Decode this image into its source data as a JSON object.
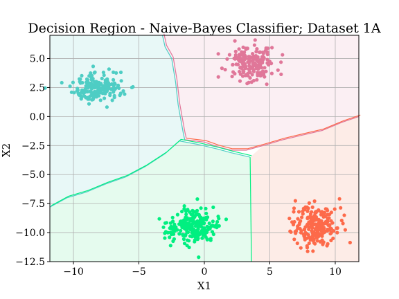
{
  "chart_data": {
    "type": "scatter",
    "title": "Decision Region - Naive-Bayes Classifier; Dataset 1A",
    "xlabel": "X1",
    "ylabel": "X2",
    "xlim": [
      -11.8,
      11.8
    ],
    "ylim": [
      -12.5,
      7.0
    ],
    "xticks": [
      -10,
      -5,
      0,
      5,
      10
    ],
    "yticks": [
      -12.5,
      -10.0,
      -7.5,
      -5.0,
      -2.5,
      0.0,
      2.5,
      5.0
    ],
    "xtick_labels": [
      "−10",
      "−5",
      "0",
      "5",
      "10"
    ],
    "ytick_labels": [
      "−12.5",
      "−10.0",
      "−7.5",
      "−5.0",
      "−2.5",
      "0.0",
      "2.5",
      "5.0"
    ],
    "grid": true,
    "clusters": [
      {
        "center": [
          -8.2,
          2.5
        ],
        "spread": [
          1.0,
          0.6
        ],
        "count": 180,
        "color": "#4ecdc4",
        "region_color": "#e8f8f7"
      },
      {
        "center": [
          3.6,
          4.5
        ],
        "spread": [
          0.9,
          0.8
        ],
        "count": 180,
        "color": "#e07799",
        "region_color": "#fbeff3"
      },
      {
        "center": [
          -0.9,
          -9.5
        ],
        "spread": [
          1.0,
          0.7
        ],
        "count": 240,
        "color": "#00ef80",
        "region_color": "#e5fbee"
      },
      {
        "center": [
          8.5,
          -9.4
        ],
        "spread": [
          0.9,
          0.9
        ],
        "count": 220,
        "color": "#fd6a4a",
        "region_color": "#fdece7"
      }
    ],
    "boundaries": {
      "left_vertical": [
        [
          -3.2,
          7.0
        ],
        [
          -3.0,
          6.0
        ],
        [
          -2.5,
          5.0
        ],
        [
          -2.2,
          3.0
        ],
        [
          -2.0,
          1.0
        ],
        [
          -1.6,
          -1.5
        ],
        [
          -1.5,
          -2.0
        ]
      ],
      "upper_diagonal": [
        [
          -1.5,
          -2.0
        ],
        [
          0.0,
          -2.2
        ],
        [
          1.0,
          -2.6
        ],
        [
          2.0,
          -2.9
        ],
        [
          3.2,
          -2.9
        ],
        [
          4.5,
          -2.5
        ],
        [
          6.0,
          -2.0
        ],
        [
          7.5,
          -1.6
        ],
        [
          9.0,
          -1.2
        ],
        [
          10.5,
          -0.5
        ],
        [
          11.8,
          0.0
        ]
      ],
      "lower_diagonal": [
        [
          -11.8,
          -7.8
        ],
        [
          -10.5,
          -7.0
        ],
        [
          -9.0,
          -6.5
        ],
        [
          -7.5,
          -5.8
        ],
        [
          -6.0,
          -5.2
        ],
        [
          -4.5,
          -4.3
        ],
        [
          -3.0,
          -3.2
        ],
        [
          -1.9,
          -2.1
        ],
        [
          -0.5,
          -2.4
        ],
        [
          1.0,
          -2.8
        ],
        [
          2.0,
          -3.1
        ],
        [
          3.5,
          -3.5
        ]
      ],
      "lower_vertical": [
        [
          3.5,
          -3.5
        ],
        [
          3.6,
          -12.5
        ]
      ],
      "line_colors": [
        "#4ecdc4",
        "#e07799",
        "#00ef80",
        "#fd6a4a"
      ]
    }
  }
}
